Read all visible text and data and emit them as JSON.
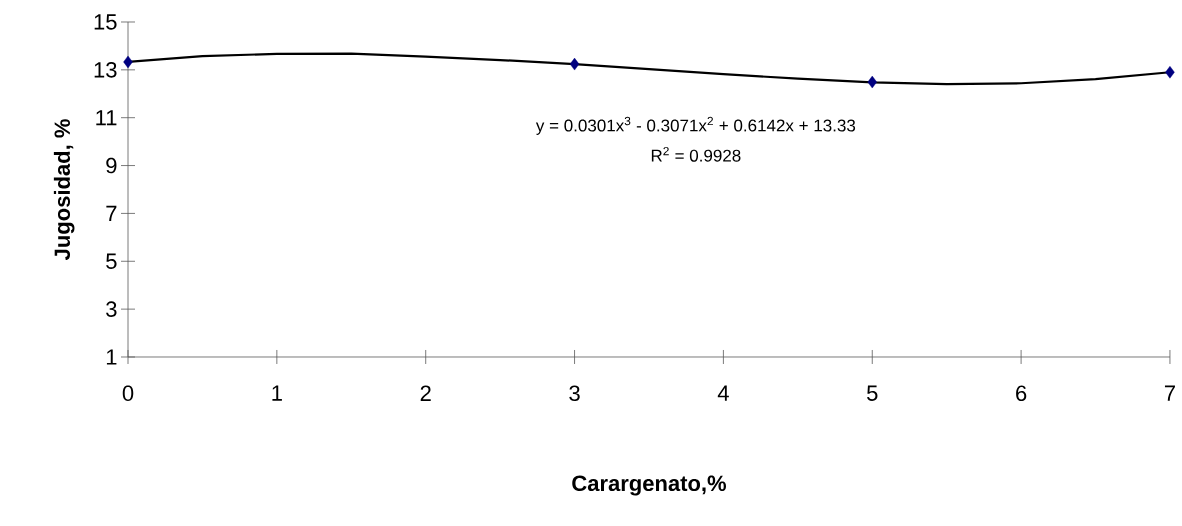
{
  "chart_data": {
    "type": "scatter",
    "xlabel": "Carargenato,%",
    "ylabel": "Jugosidad, %",
    "xlim": [
      0,
      7
    ],
    "ylim": [
      1,
      15
    ],
    "xticks": [
      0,
      1,
      2,
      3,
      4,
      5,
      6,
      7
    ],
    "yticks": [
      1,
      3,
      5,
      7,
      9,
      11,
      13,
      15
    ],
    "annotations": [
      "y = 0.0301x$^{3}$ - 0.3071x$^{2}$ + 0.6142x + 13.33",
      "R$^{2}$ = 0.9928"
    ],
    "series": [
      {
        "type": "line",
        "color": "#000000",
        "marker": "none",
        "x": [
          0,
          0.5,
          1,
          1.5,
          2,
          2.5,
          3,
          3.5,
          4,
          4.5,
          5,
          5.5,
          6,
          6.5,
          7
        ],
        "values": [
          13.33,
          13.57,
          13.67,
          13.68,
          13.55,
          13.41,
          13.24,
          13.03,
          12.82,
          12.63,
          12.48,
          12.4,
          12.44,
          12.61,
          12.9
        ]
      },
      {
        "type": "scatter",
        "color": "#000080",
        "marker": "diamond",
        "x": [
          0,
          3,
          5,
          7
        ],
        "values": [
          13.33,
          13.24,
          12.49,
          12.9
        ]
      }
    ]
  }
}
